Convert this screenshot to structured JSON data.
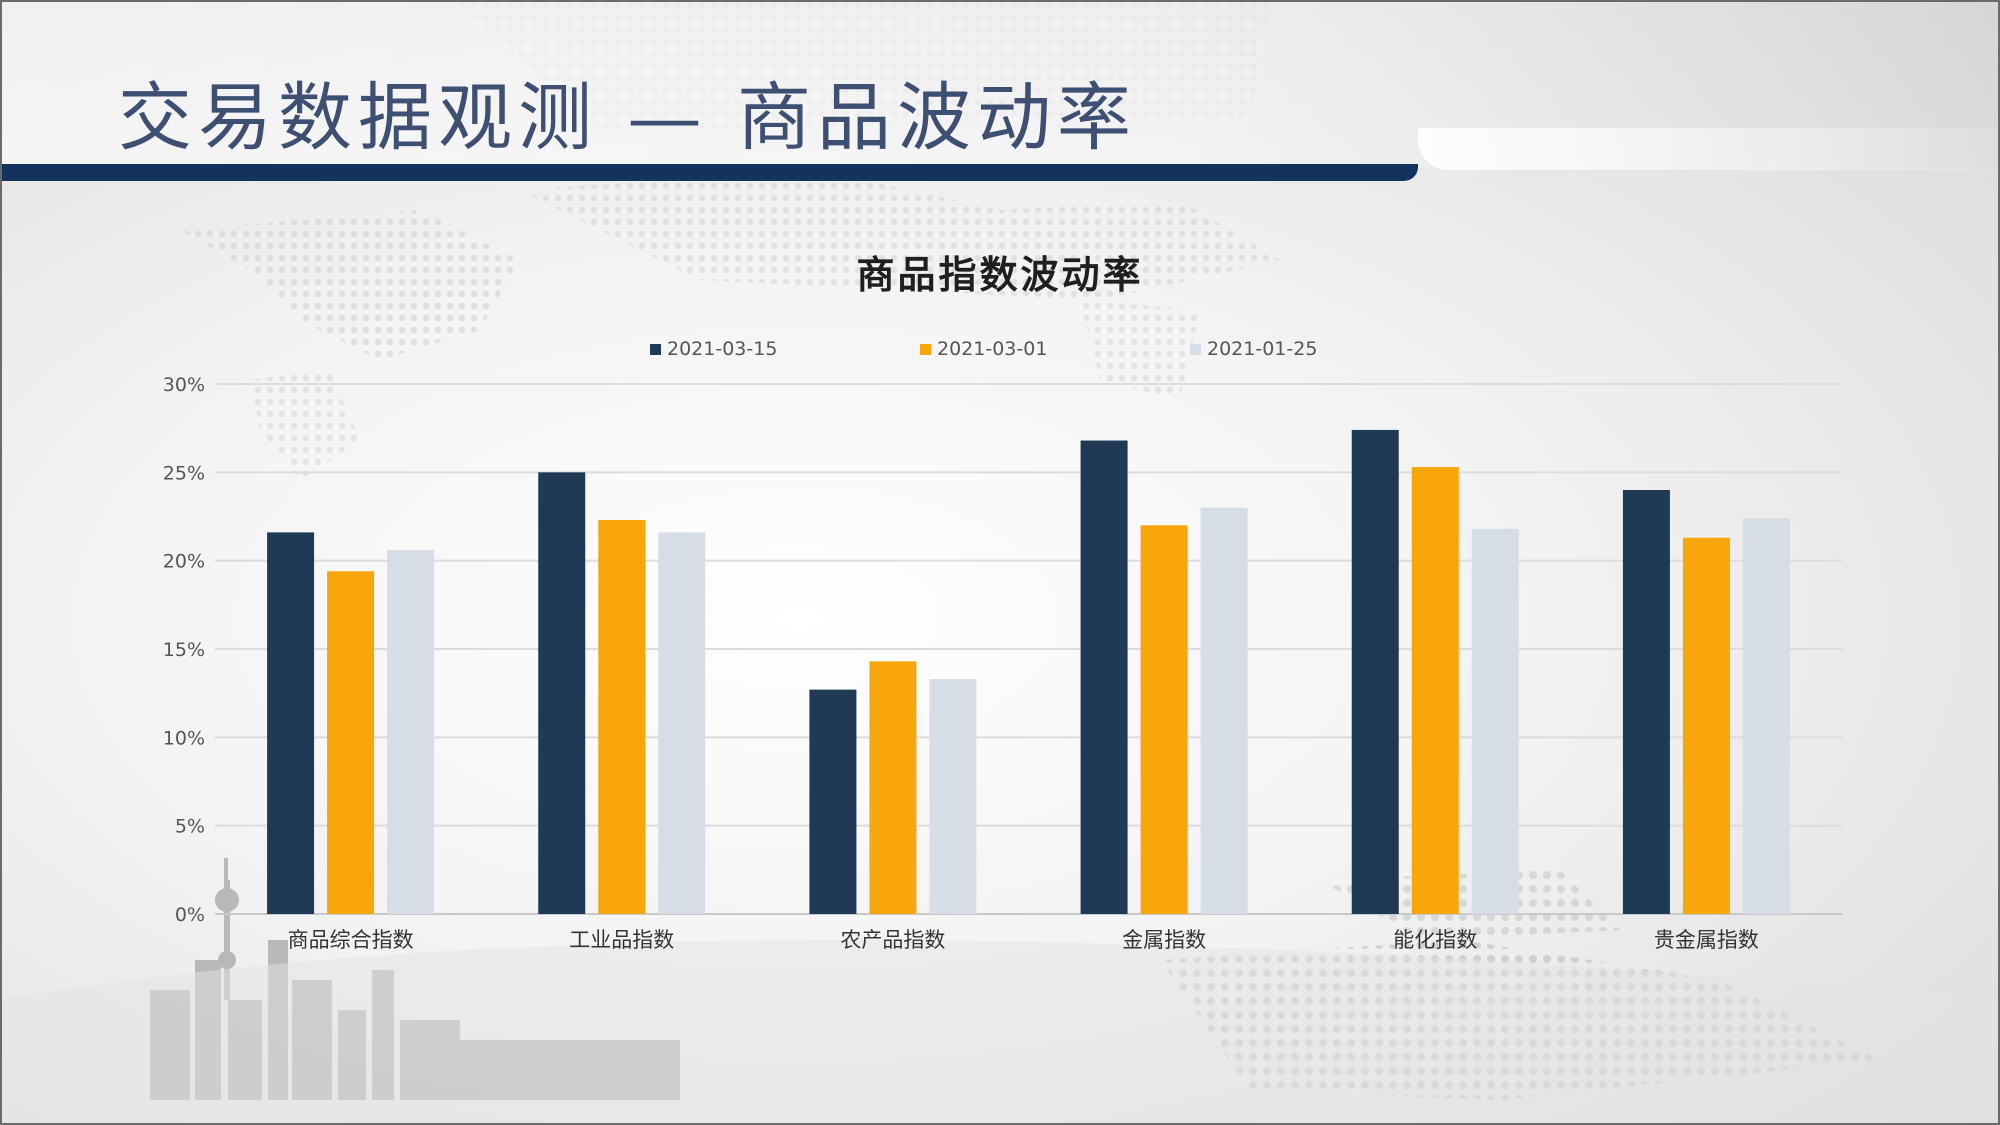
{
  "slide": {
    "title": "交易数据观测 — 商品波动率"
  },
  "colors": {
    "title_text": "#3d4f72",
    "title_bar": "#13325e"
  },
  "chart_data": {
    "type": "bar",
    "title": "商品指数波动率",
    "xlabel": "",
    "ylabel": "",
    "ylim": [
      0,
      30
    ],
    "y_ticks": [
      "0%",
      "5%",
      "10%",
      "15%",
      "20%",
      "25%",
      "30%"
    ],
    "y_tick_values": [
      0,
      5,
      10,
      15,
      20,
      25,
      30
    ],
    "grid": true,
    "legend_position": "top",
    "categories": [
      "商品综合指数",
      "工业品指数",
      "农产品指数",
      "金属指数",
      "能化指数",
      "贵金属指数"
    ],
    "series": [
      {
        "name": "2021-03-15",
        "color": "#203a55",
        "values": [
          21.6,
          25.0,
          12.7,
          26.8,
          27.4,
          24.0
        ]
      },
      {
        "name": "2021-03-01",
        "color": "#f9a50c",
        "values": [
          19.4,
          22.3,
          14.3,
          22.0,
          25.3,
          21.3
        ]
      },
      {
        "name": "2021-01-25",
        "color": "#d6dde6",
        "values": [
          20.6,
          21.6,
          13.3,
          23.0,
          21.8,
          22.4
        ]
      }
    ]
  }
}
